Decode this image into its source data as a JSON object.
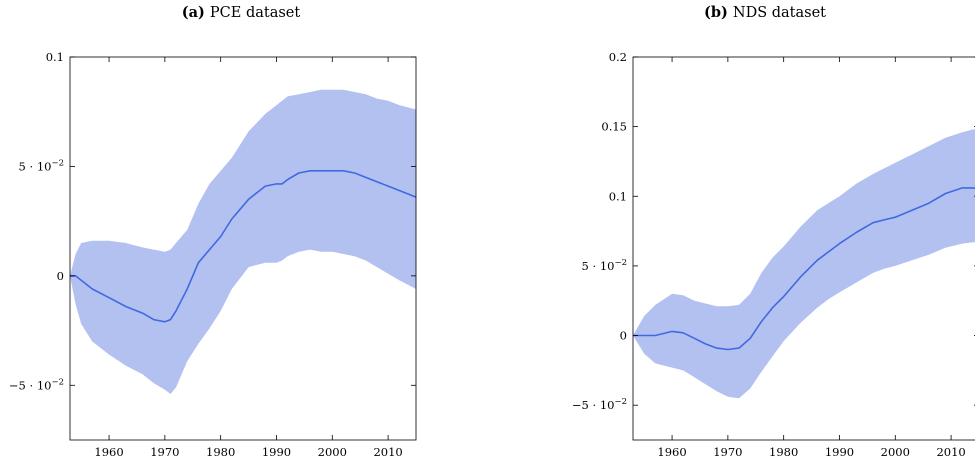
{
  "chart_data": [
    {
      "type": "area",
      "title_label": "(a)",
      "title": "PCE dataset",
      "xlabel": "",
      "ylabel": "",
      "xlim": [
        1953,
        2015
      ],
      "ylim": [
        -0.075,
        0.1
      ],
      "x_ticks": [
        {
          "value": 1960,
          "label": "1960"
        },
        {
          "value": 1970,
          "label": "1970"
        },
        {
          "value": 1980,
          "label": "1980"
        },
        {
          "value": 1990,
          "label": "1990"
        },
        {
          "value": 2000,
          "label": "2000"
        },
        {
          "value": 2010,
          "label": "2010"
        }
      ],
      "y_ticks": [
        {
          "value": -0.05,
          "label": "−5 · 10",
          "exp": "−2"
        },
        {
          "value": 0,
          "label": "0",
          "exp": ""
        },
        {
          "value": 0.05,
          "label": "5 · 10",
          "exp": "−2"
        },
        {
          "value": 0.1,
          "label": "0.1",
          "exp": ""
        }
      ],
      "grid": false,
      "series": [
        {
          "x": [
            1953,
            1954,
            1955,
            1957,
            1960,
            1963,
            1966,
            1968,
            1970,
            1971,
            1972,
            1974,
            1976,
            1978,
            1980,
            1982,
            1985,
            1988,
            1990,
            1991,
            1992,
            1994,
            1996,
            1998,
            2000,
            2002,
            2004,
            2006,
            2008,
            2010,
            2012,
            2015
          ],
          "mean": [
            0.0,
            0.0,
            -0.002,
            -0.006,
            -0.01,
            -0.014,
            -0.017,
            -0.02,
            -0.021,
            -0.02,
            -0.016,
            -0.006,
            0.006,
            0.012,
            0.018,
            0.026,
            0.035,
            0.041,
            0.042,
            0.042,
            0.044,
            0.047,
            0.048,
            0.048,
            0.048,
            0.048,
            0.047,
            0.045,
            0.043,
            0.041,
            0.039,
            0.036
          ],
          "upper": [
            0.0,
            0.01,
            0.015,
            0.016,
            0.016,
            0.015,
            0.013,
            0.012,
            0.011,
            0.012,
            0.015,
            0.021,
            0.033,
            0.042,
            0.048,
            0.054,
            0.066,
            0.074,
            0.078,
            0.08,
            0.082,
            0.083,
            0.084,
            0.085,
            0.085,
            0.085,
            0.084,
            0.083,
            0.081,
            0.08,
            0.078,
            0.076
          ],
          "lower": [
            0.0,
            -0.013,
            -0.022,
            -0.03,
            -0.036,
            -0.041,
            -0.045,
            -0.049,
            -0.052,
            -0.054,
            -0.051,
            -0.039,
            -0.031,
            -0.024,
            -0.016,
            -0.006,
            0.004,
            0.006,
            0.006,
            0.007,
            0.009,
            0.011,
            0.012,
            0.011,
            0.011,
            0.01,
            0.009,
            0.007,
            0.004,
            0.001,
            -0.002,
            -0.006
          ]
        }
      ]
    },
    {
      "type": "area",
      "title_label": "(b)",
      "title": "NDS dataset",
      "xlabel": "",
      "ylabel": "",
      "xlim": [
        1953,
        2015
      ],
      "ylim": [
        -0.075,
        0.2
      ],
      "x_ticks": [
        {
          "value": 1960,
          "label": "1960"
        },
        {
          "value": 1970,
          "label": "1970"
        },
        {
          "value": 1980,
          "label": "1980"
        },
        {
          "value": 1990,
          "label": "1990"
        },
        {
          "value": 2000,
          "label": "2000"
        },
        {
          "value": 2010,
          "label": "2010"
        }
      ],
      "y_ticks": [
        {
          "value": -0.05,
          "label": "−5 · 10",
          "exp": "−2"
        },
        {
          "value": 0,
          "label": "0",
          "exp": ""
        },
        {
          "value": 0.05,
          "label": "5 · 10",
          "exp": "−2"
        },
        {
          "value": 0.1,
          "label": "0.1",
          "exp": ""
        },
        {
          "value": 0.15,
          "label": "0.15",
          "exp": ""
        },
        {
          "value": 0.2,
          "label": "0.2",
          "exp": ""
        }
      ],
      "grid": false,
      "series": [
        {
          "x": [
            1953,
            1955,
            1957,
            1960,
            1962,
            1964,
            1966,
            1968,
            1970,
            1972,
            1974,
            1976,
            1978,
            1980,
            1983,
            1986,
            1988,
            1990,
            1993,
            1996,
            1998,
            2000,
            2003,
            2006,
            2009,
            2012,
            2014,
            2015
          ],
          "mean": [
            0.0,
            0.0,
            0.0,
            0.003,
            0.002,
            -0.002,
            -0.006,
            -0.009,
            -0.01,
            -0.009,
            -0.002,
            0.01,
            0.02,
            0.028,
            0.042,
            0.054,
            0.06,
            0.066,
            0.074,
            0.081,
            0.083,
            0.085,
            0.09,
            0.095,
            0.102,
            0.106,
            0.106,
            0.105
          ],
          "upper": [
            0.0,
            0.014,
            0.022,
            0.03,
            0.029,
            0.025,
            0.023,
            0.021,
            0.021,
            0.022,
            0.03,
            0.045,
            0.056,
            0.064,
            0.078,
            0.09,
            0.095,
            0.1,
            0.109,
            0.116,
            0.12,
            0.124,
            0.13,
            0.136,
            0.142,
            0.146,
            0.148,
            0.148
          ],
          "lower": [
            0.0,
            -0.013,
            -0.02,
            -0.023,
            -0.025,
            -0.03,
            -0.035,
            -0.04,
            -0.044,
            -0.045,
            -0.038,
            -0.026,
            -0.015,
            -0.004,
            0.009,
            0.02,
            0.026,
            0.031,
            0.038,
            0.045,
            0.048,
            0.05,
            0.054,
            0.058,
            0.063,
            0.066,
            0.067,
            0.067
          ]
        }
      ]
    }
  ],
  "colors": {
    "band": "#b3c1f1",
    "line": "#4169e1",
    "axis": "#000000"
  }
}
